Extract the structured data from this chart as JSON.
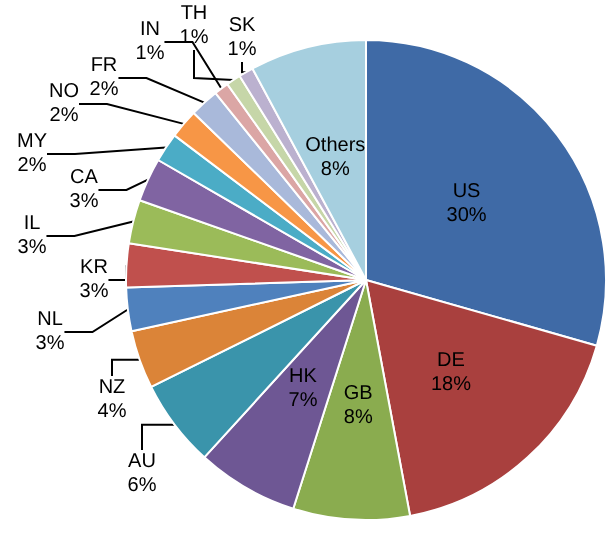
{
  "chart_data": {
    "type": "pie",
    "categories": [
      "US",
      "DE",
      "GB",
      "HK",
      "AU",
      "NZ",
      "NL",
      "KR",
      "IL",
      "CA",
      "MY",
      "NO",
      "FR",
      "IN",
      "TH",
      "SK",
      "Others"
    ],
    "values": [
      30,
      18,
      8,
      7,
      6,
      4,
      3,
      3,
      3,
      3,
      2,
      2,
      2,
      1,
      1,
      1,
      8
    ],
    "value_labels": [
      "30%",
      "18%",
      "8%",
      "7%",
      "6%",
      "4%",
      "3%",
      "3%",
      "3%",
      "3%",
      "2%",
      "2%",
      "2%",
      "1%",
      "1%",
      "1%",
      "8%"
    ],
    "colors": [
      "#3f6aa6",
      "#a9403e",
      "#8aac4f",
      "#6e5794",
      "#3a94ab",
      "#db8438",
      "#4f81bd",
      "#c0504d",
      "#9bbb59",
      "#8064a2",
      "#4bacc6",
      "#f79646",
      "#a9b9da",
      "#dba6a5",
      "#c6d6a8",
      "#bbb1cf",
      "#a6cfdf"
    ],
    "legend": false
  }
}
